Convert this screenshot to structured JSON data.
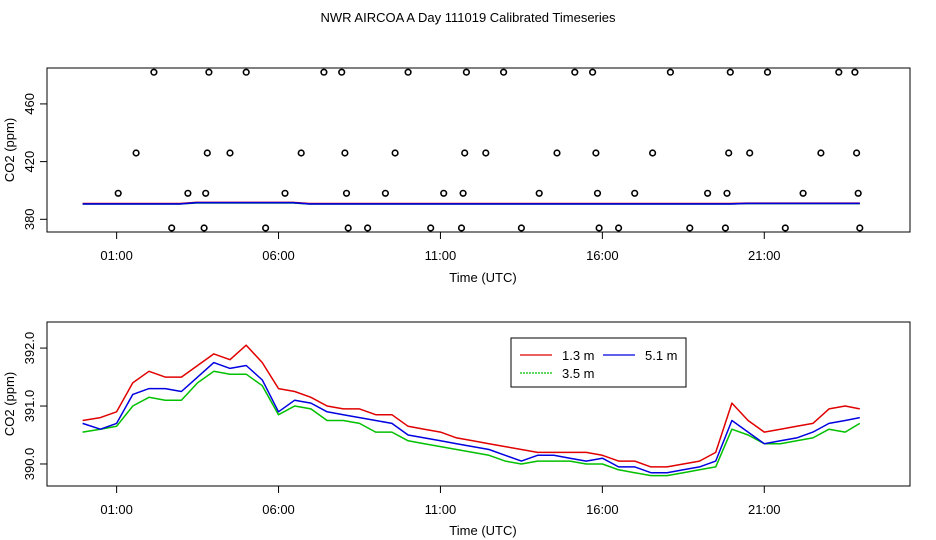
{
  "page": {
    "title": "NWR AIRCOA A  Day 111019  Calibrated Timeseries"
  },
  "chart_data": [
    {
      "type": "scatter",
      "panel": "top",
      "xlabel": "Time (UTC)",
      "ylabel": "CO2 (ppm)",
      "x_ticks": [
        "01:00",
        "06:00",
        "11:00",
        "16:00",
        "21:00"
      ],
      "x_tick_values": [
        1,
        6,
        11,
        16,
        21
      ],
      "y_ticks": [
        "380",
        "420",
        "460"
      ],
      "y_tick_values": [
        380,
        420,
        460
      ],
      "xlim": [
        -1.15,
        25.5
      ],
      "ylim": [
        371.2,
        484.9
      ],
      "colors": {
        "line_red": "#e00000",
        "line_green": "#00c000",
        "line_blue": "#0000e0",
        "points": "#000000"
      },
      "calibration_points": [
        {
          "x": 1.05,
          "y": 398
        },
        {
          "x": 1.6,
          "y": 426
        },
        {
          "x": 2.15,
          "y": 482
        },
        {
          "x": 2.7,
          "y": 374
        },
        {
          "x": 3.2,
          "y": 398
        },
        {
          "x": 3.7,
          "y": 374
        },
        {
          "x": 3.75,
          "y": 398
        },
        {
          "x": 3.8,
          "y": 426
        },
        {
          "x": 3.85,
          "y": 482
        },
        {
          "x": 4.5,
          "y": 426
        },
        {
          "x": 5.0,
          "y": 482
        },
        {
          "x": 5.6,
          "y": 374
        },
        {
          "x": 6.2,
          "y": 398
        },
        {
          "x": 6.7,
          "y": 426
        },
        {
          "x": 7.4,
          "y": 482
        },
        {
          "x": 7.95,
          "y": 482
        },
        {
          "x": 8.05,
          "y": 426
        },
        {
          "x": 8.1,
          "y": 398
        },
        {
          "x": 8.15,
          "y": 374
        },
        {
          "x": 8.75,
          "y": 374
        },
        {
          "x": 9.3,
          "y": 398
        },
        {
          "x": 9.6,
          "y": 426
        },
        {
          "x": 10.0,
          "y": 482
        },
        {
          "x": 10.7,
          "y": 374
        },
        {
          "x": 11.1,
          "y": 398
        },
        {
          "x": 11.65,
          "y": 374
        },
        {
          "x": 11.7,
          "y": 398
        },
        {
          "x": 11.75,
          "y": 426
        },
        {
          "x": 11.8,
          "y": 482
        },
        {
          "x": 12.4,
          "y": 426
        },
        {
          "x": 12.95,
          "y": 482
        },
        {
          "x": 13.5,
          "y": 374
        },
        {
          "x": 14.05,
          "y": 398
        },
        {
          "x": 14.6,
          "y": 426
        },
        {
          "x": 15.15,
          "y": 482
        },
        {
          "x": 15.7,
          "y": 482
        },
        {
          "x": 15.8,
          "y": 426
        },
        {
          "x": 15.85,
          "y": 398
        },
        {
          "x": 15.9,
          "y": 374
        },
        {
          "x": 16.5,
          "y": 374
        },
        {
          "x": 17.0,
          "y": 398
        },
        {
          "x": 17.55,
          "y": 426
        },
        {
          "x": 18.1,
          "y": 482
        },
        {
          "x": 18.7,
          "y": 374
        },
        {
          "x": 19.25,
          "y": 398
        },
        {
          "x": 19.8,
          "y": 374
        },
        {
          "x": 19.85,
          "y": 398
        },
        {
          "x": 19.9,
          "y": 426
        },
        {
          "x": 19.95,
          "y": 482
        },
        {
          "x": 20.55,
          "y": 426
        },
        {
          "x": 21.1,
          "y": 482
        },
        {
          "x": 21.65,
          "y": 374
        },
        {
          "x": 22.2,
          "y": 398
        },
        {
          "x": 22.75,
          "y": 426
        },
        {
          "x": 23.3,
          "y": 482
        },
        {
          "x": 23.8,
          "y": 482
        },
        {
          "x": 23.85,
          "y": 426
        },
        {
          "x": 23.9,
          "y": 398
        },
        {
          "x": 23.95,
          "y": 374
        }
      ]
    },
    {
      "type": "line",
      "panel": "bottom",
      "xlabel": "Time (UTC)",
      "ylabel": "CO2 (ppm)",
      "x_ticks": [
        "01:00",
        "06:00",
        "11:00",
        "16:00",
        "21:00"
      ],
      "x_tick_values": [
        1,
        6,
        11,
        16,
        21
      ],
      "y_ticks": [
        "390.0",
        "391.0",
        "392.0"
      ],
      "y_tick_values": [
        390.0,
        391.0,
        392.0
      ],
      "xlim": [
        -1.15,
        25.5
      ],
      "ylim": [
        389.62,
        392.45
      ],
      "legend": {
        "position": "top-center",
        "entries": [
          "1.3 m",
          "5.1 m",
          "3.5 m"
        ]
      },
      "series": [
        {
          "name": "1.3 m",
          "color": "#e00000",
          "x": [
            -0.05,
            0.5,
            1.0,
            1.5,
            2.0,
            2.5,
            3.0,
            3.5,
            4.0,
            4.5,
            5.0,
            5.5,
            6.0,
            6.5,
            7.0,
            7.5,
            8.0,
            8.5,
            9.0,
            9.5,
            10.0,
            10.5,
            11.0,
            11.5,
            12.0,
            12.5,
            13.0,
            13.5,
            14.0,
            14.5,
            15.0,
            15.5,
            16.0,
            16.5,
            17.0,
            17.5,
            18.0,
            18.5,
            19.0,
            19.5,
            20.0,
            20.5,
            21.0,
            21.5,
            22.0,
            22.5,
            23.0,
            23.5,
            23.95
          ],
          "values": [
            390.75,
            390.8,
            390.9,
            391.4,
            391.6,
            391.5,
            391.5,
            391.7,
            391.9,
            391.8,
            392.05,
            391.75,
            391.3,
            391.25,
            391.15,
            391.0,
            390.95,
            390.95,
            390.85,
            390.85,
            390.65,
            390.6,
            390.55,
            390.45,
            390.4,
            390.35,
            390.3,
            390.25,
            390.2,
            390.2,
            390.2,
            390.2,
            390.15,
            390.05,
            390.05,
            389.95,
            389.95,
            390.0,
            390.05,
            390.2,
            391.05,
            390.75,
            390.55,
            390.6,
            390.65,
            390.7,
            390.95,
            391.0,
            390.95
          ]
        },
        {
          "name": "5.1 m",
          "color": "#0000e0",
          "x": [
            -0.05,
            0.5,
            1.0,
            1.5,
            2.0,
            2.5,
            3.0,
            3.5,
            4.0,
            4.5,
            5.0,
            5.5,
            6.0,
            6.5,
            7.0,
            7.5,
            8.0,
            8.5,
            9.0,
            9.5,
            10.0,
            10.5,
            11.0,
            11.5,
            12.0,
            12.5,
            13.0,
            13.5,
            14.0,
            14.5,
            15.0,
            15.5,
            16.0,
            16.5,
            17.0,
            17.5,
            18.0,
            18.5,
            19.0,
            19.5,
            20.0,
            20.5,
            21.0,
            21.5,
            22.0,
            22.5,
            23.0,
            23.5,
            23.95
          ],
          "values": [
            390.7,
            390.6,
            390.7,
            391.2,
            391.3,
            391.3,
            391.25,
            391.5,
            391.75,
            391.65,
            391.7,
            391.45,
            390.9,
            391.1,
            391.05,
            390.9,
            390.85,
            390.8,
            390.75,
            390.7,
            390.5,
            390.45,
            390.4,
            390.35,
            390.3,
            390.25,
            390.15,
            390.05,
            390.15,
            390.15,
            390.1,
            390.05,
            390.1,
            389.95,
            389.95,
            389.85,
            389.85,
            389.9,
            389.95,
            390.05,
            390.75,
            390.55,
            390.35,
            390.4,
            390.45,
            390.55,
            390.7,
            390.75,
            390.8
          ]
        },
        {
          "name": "3.5 m",
          "color": "#00c000",
          "x": [
            -0.05,
            0.5,
            1.0,
            1.5,
            2.0,
            2.5,
            3.0,
            3.5,
            4.0,
            4.5,
            5.0,
            5.5,
            6.0,
            6.5,
            7.0,
            7.5,
            8.0,
            8.5,
            9.0,
            9.5,
            10.0,
            10.5,
            11.0,
            11.5,
            12.0,
            12.5,
            13.0,
            13.5,
            14.0,
            14.5,
            15.0,
            15.5,
            16.0,
            16.5,
            17.0,
            17.5,
            18.0,
            18.5,
            19.0,
            19.5,
            20.0,
            20.5,
            21.0,
            21.5,
            22.0,
            22.5,
            23.0,
            23.5,
            23.95
          ],
          "values": [
            390.55,
            390.6,
            390.65,
            391.0,
            391.15,
            391.1,
            391.1,
            391.4,
            391.6,
            391.55,
            391.55,
            391.35,
            390.85,
            391.0,
            390.95,
            390.75,
            390.75,
            390.7,
            390.55,
            390.55,
            390.4,
            390.35,
            390.3,
            390.25,
            390.2,
            390.15,
            390.05,
            390.0,
            390.05,
            390.05,
            390.05,
            390.0,
            390.0,
            389.9,
            389.85,
            389.8,
            389.8,
            389.85,
            389.9,
            389.95,
            390.6,
            390.5,
            390.35,
            390.35,
            390.4,
            390.45,
            390.6,
            390.55,
            390.7
          ]
        }
      ]
    }
  ]
}
